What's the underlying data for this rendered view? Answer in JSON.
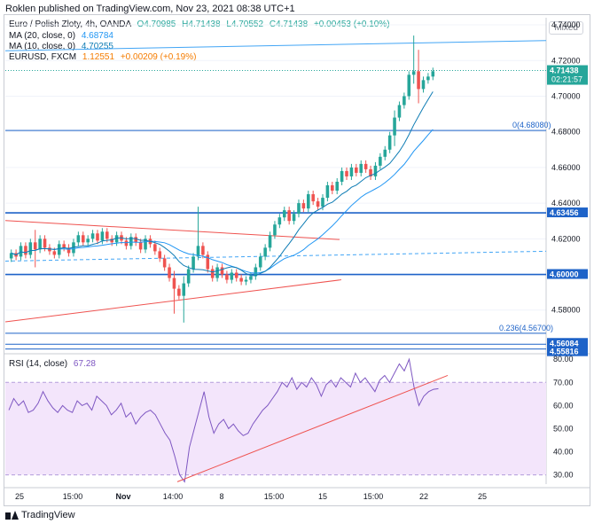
{
  "header": {
    "publisher": "Roklen published on TradingView.com, Nov 23, 2021 08:38 UTC+1"
  },
  "legend": {
    "symbol": {
      "name": "Euro / Polish Zloty, 4h, OANDA",
      "o": "O4.70985",
      "h": "H4.71438",
      "l": "L4.70552",
      "c": "C4.71438",
      "chg": "+0.00453 (+0.10%)"
    },
    "ma20": {
      "name": "MA (20, close, 0)",
      "value": "4.68784"
    },
    "ma10": {
      "name": "MA (10, close, 0)",
      "value": "4.70255"
    },
    "eurusd": {
      "name": "EURUSD, FXCM",
      "value": "1.12551",
      "chg": "+0.00209 (+0.19%)"
    }
  },
  "mixed_label": "Mixed",
  "price_axis": {
    "ticks": [
      "4.74000",
      "4.72000",
      "4.70000",
      "4.68000",
      "4.66000",
      "4.64000",
      "4.62000",
      "4.60000",
      "4.58000"
    ],
    "badges": [
      {
        "label": "4.71438",
        "time": "02:21:57"
      },
      {
        "label": "4.63456"
      },
      {
        "label": "4.60000"
      },
      {
        "label": "4.56084"
      },
      {
        "label": "4.55816"
      }
    ]
  },
  "fib_labels": [
    "0(4.68080)",
    "0.236(4.56700)"
  ],
  "rsi": {
    "name": "RSI (14, close)",
    "value": "67.28",
    "ticks": [
      "80.00",
      "70.00",
      "60.00",
      "50.00",
      "40.00",
      "30.00"
    ]
  },
  "time_axis": [
    "25",
    "15:00",
    "Nov",
    "14:00",
    "8",
    "15:00",
    "15",
    "15:00",
    "22",
    "25"
  ],
  "footer": {
    "brand": "TradingView"
  },
  "colors": {
    "up": "#26a69a",
    "down": "#ef5350",
    "ma20": "#2196f3",
    "ma10": "#0e7cb4",
    "level": "#1e63c8",
    "trend": "#ef5350",
    "rsi": "#7e57c2",
    "rsi_band": "#f3e5fb"
  },
  "chart_data": [
    {
      "type": "candlestick",
      "title": "Euro / Polish Zloty, 4h, OANDA",
      "ylim": [
        4.556,
        4.744
      ],
      "close": [
        4.612,
        4.61,
        4.616,
        4.611,
        4.618,
        4.614,
        4.62,
        4.615,
        4.613,
        4.611,
        4.617,
        4.615,
        4.612,
        4.618,
        4.622,
        4.618,
        4.62,
        4.623,
        4.619,
        4.624,
        4.62,
        4.618,
        4.622,
        4.619,
        4.616,
        4.621,
        4.618,
        4.614,
        4.62,
        4.617,
        4.613,
        4.609,
        4.604,
        4.598,
        4.592,
        4.588,
        4.595,
        4.603,
        4.61,
        4.616,
        4.611,
        4.603,
        4.598,
        4.604,
        4.6,
        4.597,
        4.601,
        4.598,
        4.596,
        4.597,
        4.599,
        4.604,
        4.61,
        4.615,
        4.622,
        4.628,
        4.632,
        4.636,
        4.63,
        4.634,
        4.64,
        4.637,
        4.645,
        4.641,
        4.638,
        4.643,
        4.65,
        4.647,
        4.652,
        4.658,
        4.655,
        4.66,
        4.657,
        4.662,
        4.659,
        4.655,
        4.661,
        4.666,
        4.67,
        4.678,
        4.688,
        4.695,
        4.7,
        4.712,
        4.714,
        4.704,
        4.709,
        4.711,
        4.714
      ],
      "ma10_last": 4.70255,
      "ma20_last": 4.68784
    },
    {
      "type": "line",
      "title": "RSI (14, close)",
      "ylim": [
        26,
        82
      ],
      "values": [
        58,
        63,
        60,
        62,
        57,
        58,
        61,
        66,
        62,
        59,
        57,
        60,
        58,
        57,
        62,
        60,
        61,
        58,
        64,
        62,
        60,
        56,
        58,
        61,
        55,
        57,
        52,
        55,
        57,
        58,
        56,
        52,
        48,
        45,
        38,
        30,
        27,
        42,
        50,
        58,
        66,
        55,
        48,
        52,
        54,
        50,
        52,
        49,
        47,
        48,
        52,
        55,
        58,
        60,
        63,
        66,
        70,
        68,
        72,
        67,
        70,
        68,
        72,
        69,
        64,
        69,
        71,
        68,
        72,
        70,
        68,
        74,
        70,
        72,
        69,
        66,
        71,
        73,
        70,
        74,
        78,
        75,
        80,
        68,
        60,
        64,
        66,
        67,
        67.28
      ]
    }
  ]
}
